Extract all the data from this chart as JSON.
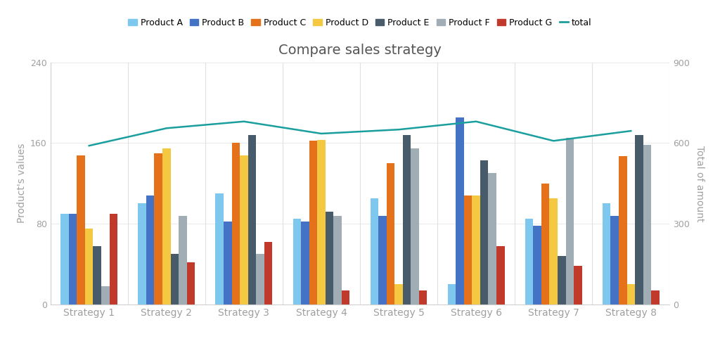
{
  "title": "Compare sales strategy",
  "categories": [
    "Strategy 1",
    "Strategy 2",
    "Strategy 3",
    "Strategy 4",
    "Strategy 5",
    "Strategy 6",
    "Strategy 7",
    "Strategy 8"
  ],
  "products": {
    "Product A": [
      90,
      100,
      110,
      85,
      105,
      20,
      85,
      100
    ],
    "Product B": [
      90,
      108,
      82,
      82,
      88,
      185,
      78,
      88
    ],
    "Product C": [
      148,
      150,
      160,
      162,
      140,
      108,
      120,
      147
    ],
    "Product D": [
      75,
      155,
      148,
      163,
      20,
      108,
      105,
      20
    ],
    "Product E": [
      58,
      50,
      168,
      92,
      168,
      143,
      48,
      168
    ],
    "Product F": [
      18,
      88,
      50,
      88,
      155,
      130,
      165,
      158
    ],
    "Product G": [
      90,
      42,
      62,
      14,
      14,
      58,
      38,
      14
    ]
  },
  "total": [
    590,
    655,
    680,
    635,
    650,
    680,
    608,
    645
  ],
  "colors": {
    "Product A": "#7ec8f0",
    "Product B": "#4472c4",
    "Product C": "#e5721a",
    "Product D": "#f5c842",
    "Product E": "#485b6a",
    "Product F": "#a0adb5",
    "Product G": "#c0392b",
    "total": "#1a9e9e"
  },
  "ylabel_left": "Product's values",
  "ylabel_right": "Total of amount",
  "ylim_left": [
    0,
    240
  ],
  "ylim_right": [
    0,
    900
  ],
  "yticks_left": [
    0,
    80,
    160,
    240
  ],
  "yticks_right": [
    0,
    300,
    600,
    900
  ],
  "background_color": "#ffffff",
  "grid_color": "#e0e0e0",
  "text_color": "#a0a0a0",
  "title_fontsize": 14,
  "axis_fontsize": 10,
  "legend_fontsize": 9
}
